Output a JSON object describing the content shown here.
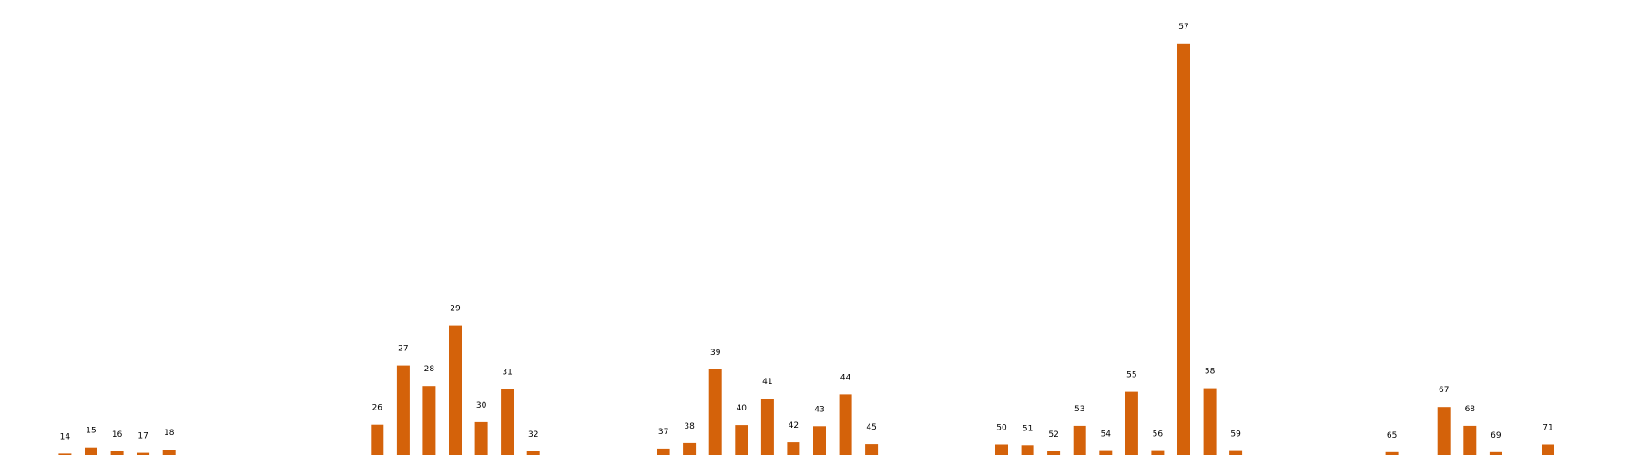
{
  "chart_data": {
    "type": "bar",
    "title": "",
    "xlabel": "",
    "ylabel": "",
    "axes_visible": false,
    "grid": false,
    "bar_color": "#d4620a",
    "x": [
      14,
      15,
      16,
      17,
      18,
      26,
      27,
      28,
      29,
      30,
      31,
      32,
      37,
      38,
      39,
      40,
      41,
      42,
      43,
      44,
      45,
      50,
      51,
      52,
      53,
      54,
      55,
      56,
      57,
      58,
      59,
      65,
      67,
      68,
      69,
      71
    ],
    "values": [
      0.4,
      2.1,
      1.0,
      0.6,
      1.5,
      8.4,
      24.8,
      19.1,
      35.9,
      9.1,
      18.3,
      1.0,
      1.8,
      3.3,
      23.7,
      8.3,
      15.6,
      3.5,
      8.0,
      16.8,
      3.0,
      2.9,
      2.7,
      1.0,
      8.1,
      1.1,
      17.5,
      1.1,
      114.0,
      18.5,
      1.1,
      0.8,
      13.3,
      8.1,
      0.8,
      2.9
    ],
    "labels": [
      "14",
      "15",
      "16",
      "17",
      "18",
      "26",
      "27",
      "28",
      "29",
      "30",
      "31",
      "32",
      "37",
      "38",
      "39",
      "40",
      "41",
      "42",
      "43",
      "44",
      "45",
      "50",
      "51",
      "52",
      "53",
      "54",
      "55",
      "56",
      "57",
      "58",
      "59",
      "65",
      "67",
      "68",
      "69",
      "71"
    ],
    "xlim": [
      11.5,
      74.5
    ],
    "ylim": [
      0,
      120
    ]
  }
}
